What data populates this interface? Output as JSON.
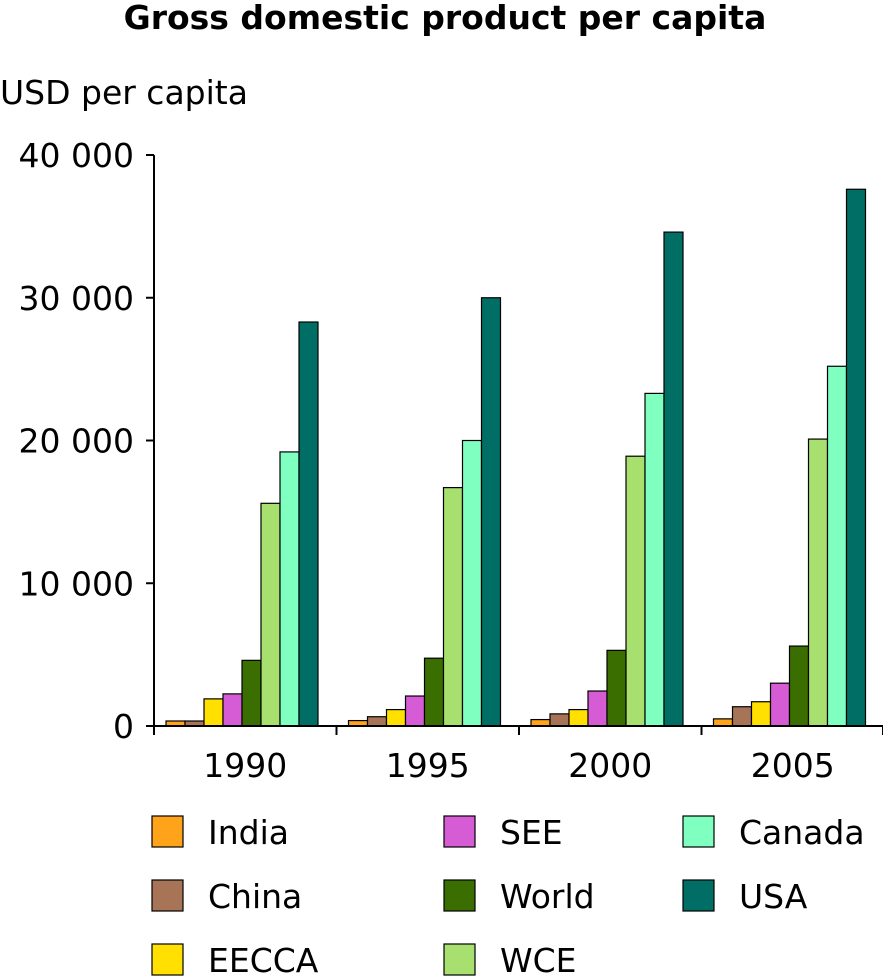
{
  "chart_data": {
    "type": "bar",
    "title": "Gross domestic product per capita",
    "ylabel": "USD per capita",
    "xlabel": "",
    "categories": [
      "1990",
      "1995",
      "2000",
      "2005"
    ],
    "ylim": [
      0,
      40000
    ],
    "yticks": [
      0,
      10000,
      20000,
      30000,
      40000
    ],
    "ytick_labels": [
      "0",
      "10 000",
      "20 000",
      "30 000",
      "40 000"
    ],
    "grid": false,
    "legend_position": "bottom",
    "series": [
      {
        "name": "India",
        "color": "#FFA31A",
        "values": [
          350,
          380,
          450,
          500
        ]
      },
      {
        "name": "China",
        "color": "#A87458",
        "values": [
          350,
          650,
          850,
          1350
        ]
      },
      {
        "name": "EECCA",
        "color": "#FFE000",
        "values": [
          1900,
          1150,
          1150,
          1700
        ]
      },
      {
        "name": "SEE",
        "color": "#D65CD6",
        "values": [
          2250,
          2100,
          2450,
          3000
        ]
      },
      {
        "name": "World",
        "color": "#3A6E00",
        "values": [
          4600,
          4750,
          5300,
          5600
        ]
      },
      {
        "name": "WCE",
        "color": "#A8E070",
        "values": [
          15600,
          16700,
          18900,
          20100
        ]
      },
      {
        "name": "Canada",
        "color": "#7FFFC0",
        "values": [
          19200,
          20000,
          23300,
          25200
        ]
      },
      {
        "name": "USA",
        "color": "#006E64",
        "values": [
          28300,
          30000,
          34600,
          37600
        ]
      }
    ]
  }
}
